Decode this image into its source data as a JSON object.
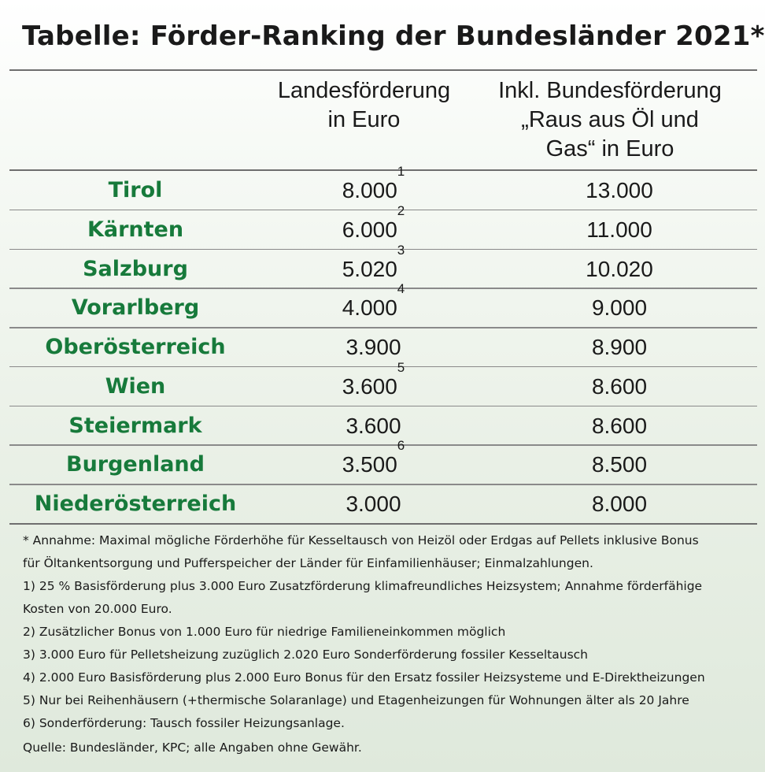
{
  "title": "Tabelle: Förder-Ranking der Bundesländer 2021*",
  "headers": {
    "col1_line1": "Landesförderung",
    "col1_line2": "in Euro",
    "col2_line1": "Inkl. Bundesförderung",
    "col2_line2": "„Raus aus Öl und",
    "col2_line3": "Gas“ in Euro"
  },
  "rows": [
    {
      "state": "Tirol",
      "landes": "8.000",
      "sup": "1",
      "bundes": "13.000"
    },
    {
      "state": "Kärnten",
      "landes": "6.000",
      "sup": "2",
      "bundes": "11.000"
    },
    {
      "state": "Salzburg",
      "landes": "5.020",
      "sup": "3",
      "bundes": "10.020"
    },
    {
      "state": "Vorarlberg",
      "landes": "4.000",
      "sup": "4",
      "bundes": "9.000"
    },
    {
      "state": "Oberösterreich",
      "landes": "3.900",
      "sup": "",
      "bundes": "8.900"
    },
    {
      "state": "Wien",
      "landes": "3.600",
      "sup": "5",
      "bundes": "8.600"
    },
    {
      "state": "Steiermark",
      "landes": "3.600",
      "sup": "",
      "bundes": "8.600"
    },
    {
      "state": "Burgenland",
      "landes": "3.500",
      "sup": "6",
      "bundes": "8.500"
    },
    {
      "state": "Niederösterreich",
      "landes": "3.000",
      "sup": "",
      "bundes": "8.000"
    }
  ],
  "notes": {
    "assumption_line1": "* Annahme: Maximal mögliche Förderhöhe für Kesseltausch von Heizöl oder Erdgas auf Pellets inklusive Bonus",
    "assumption_line2": "für Öltankentsorgung und Pufferspeicher der Länder für Einfamilienhäuser; Einmalzahlungen.",
    "fn1_line1": "1) 25 % Basisförderung plus 3.000 Euro Zusatzförderung klimafreundliches Heizsystem; Annahme förderfähige",
    "fn1_line2": "Kosten von 20.000 Euro.",
    "fn2": "2) Zusätzlicher Bonus von 1.000 Euro für niedrige Familieneinkommen möglich",
    "fn3": "3) 3.000 Euro für Pelletsheizung zuzüglich 2.020 Euro Sonderförderung fossiler Kesseltausch",
    "fn4": "4) 2.000 Euro Basisförderung plus 2.000 Euro Bonus für den Ersatz fossiler Heizsysteme und E-Direktheizungen",
    "fn5": "5) Nur bei Reihenhäusern (+thermische Solaranlage) und Etagenheizungen für Wohnungen älter als 20 Jahre",
    "fn6": "6) Sonderförderung: Tausch fossiler Heizungsanlage.",
    "source": "Quelle: Bundesländer, KPC; alle Angaben ohne Gewähr."
  },
  "colors": {
    "state_green": "#177a3b",
    "rule": "#6e6e6e"
  }
}
